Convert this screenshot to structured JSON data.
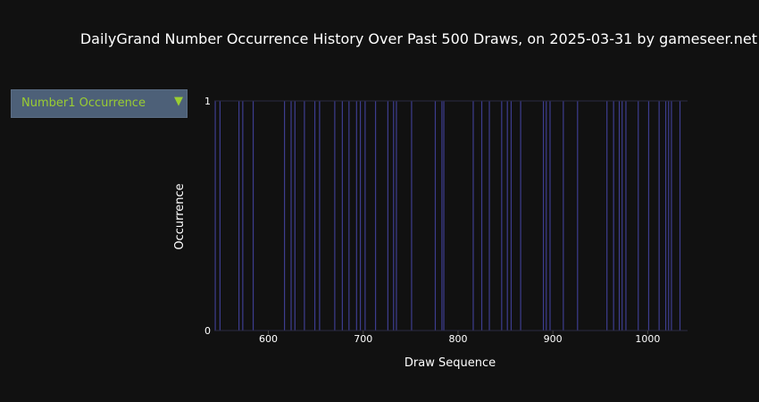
{
  "title": "DailyGrand Number Occurrence History Over Past 500 Draws, on 2025-03-31 by gameseer.net",
  "dropdown": {
    "selected": "Number1 Occurrence",
    "arrow": "▼"
  },
  "colors": {
    "background": "#111111",
    "bar": "#3d3d8f",
    "dropdown_bg": "#4d6078",
    "dropdown_text": "#9acd32"
  },
  "chart_data": {
    "type": "bar",
    "xlabel": "Draw Sequence",
    "ylabel": "Occurrence",
    "xlim": [
      543,
      1042
    ],
    "ylim": [
      0,
      1
    ],
    "xticks": [
      600,
      700,
      800,
      900,
      1000
    ],
    "yticks": [
      0,
      1
    ],
    "x": [
      544,
      549,
      569,
      573,
      584,
      617,
      624,
      628,
      638,
      649,
      654,
      670,
      678,
      685,
      693,
      697,
      702,
      713,
      726,
      732,
      735,
      751,
      776,
      783,
      785,
      816,
      825,
      833,
      846,
      852,
      856,
      866,
      890,
      893,
      897,
      911,
      926,
      957,
      964,
      970,
      973,
      977,
      990,
      1001,
      1012,
      1019,
      1022,
      1025,
      1034
    ],
    "values": [
      1,
      1,
      1,
      1,
      1,
      1,
      1,
      1,
      1,
      1,
      1,
      1,
      1,
      1,
      1,
      1,
      1,
      1,
      1,
      1,
      1,
      1,
      1,
      1,
      1,
      1,
      1,
      1,
      1,
      1,
      1,
      1,
      1,
      1,
      1,
      1,
      1,
      1,
      1,
      1,
      1,
      1,
      1,
      1,
      1,
      1,
      1,
      1,
      1
    ],
    "legend": "none",
    "grid": false
  }
}
